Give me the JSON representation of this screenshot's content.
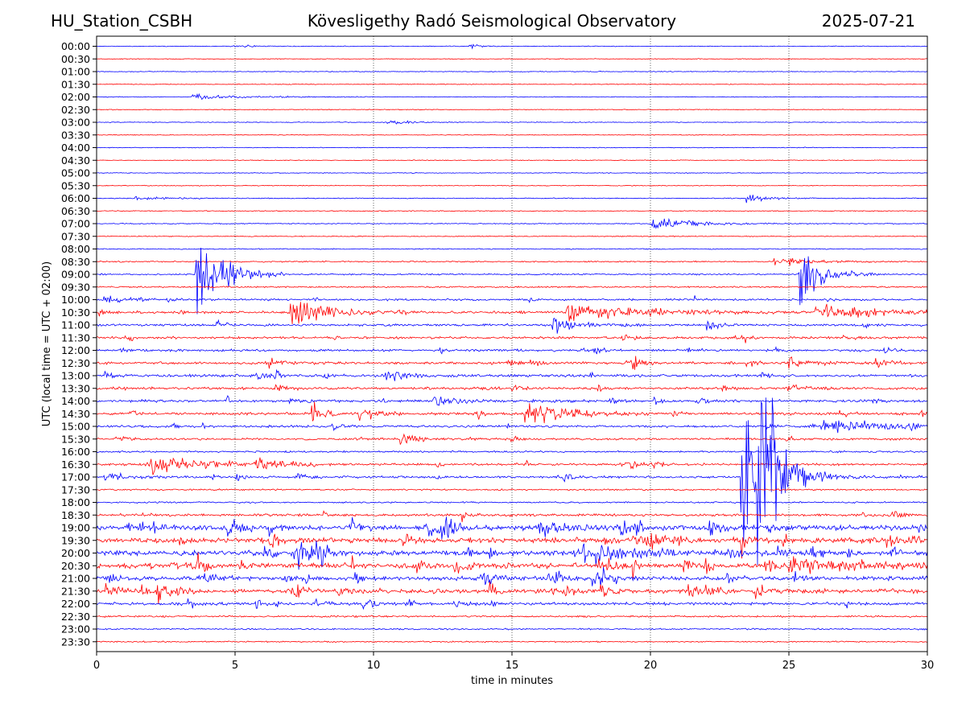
{
  "header": {
    "station": "HU_Station_CSBH",
    "title": "Kövesligethy Radó Seismological Observatory",
    "date": "2025-07-21"
  },
  "chart_data": {
    "type": "line",
    "plot": "helicorder",
    "xlabel": "time in minutes",
    "ylabel": "UTC (local time = UTC + 02:00)",
    "xlim": [
      0,
      30
    ],
    "x_ticks": [
      0,
      5,
      10,
      15,
      20,
      25,
      30
    ],
    "vertical_gridlines_at": [
      5,
      10,
      15,
      20,
      25
    ],
    "grid": "dotted vertical",
    "trace_colors": [
      "#0000ff",
      "#ff0000"
    ],
    "rows": [
      "00:00",
      "00:30",
      "01:00",
      "01:30",
      "02:00",
      "02:30",
      "03:00",
      "03:30",
      "04:00",
      "04:30",
      "05:00",
      "05:30",
      "06:00",
      "06:30",
      "07:00",
      "07:30",
      "08:00",
      "08:30",
      "09:00",
      "09:30",
      "10:00",
      "10:30",
      "11:00",
      "11:30",
      "12:00",
      "12:30",
      "13:00",
      "13:30",
      "14:00",
      "14:30",
      "15:00",
      "15:30",
      "16:00",
      "16:30",
      "17:00",
      "17:30",
      "18:00",
      "18:30",
      "19:00",
      "19:30",
      "20:00",
      "20:30",
      "21:00",
      "21:30",
      "22:00",
      "22:30",
      "23:00",
      "23:30"
    ],
    "noise_level_per_row": [
      0.3,
      0.3,
      0.3,
      0.3,
      0.3,
      0.3,
      0.3,
      0.3,
      0.3,
      0.3,
      0.3,
      0.3,
      0.35,
      0.35,
      0.35,
      0.35,
      0.4,
      0.5,
      0.6,
      0.6,
      0.8,
      1.0,
      0.9,
      0.9,
      0.9,
      1.0,
      1.1,
      1.0,
      1.0,
      1.0,
      0.9,
      0.8,
      0.7,
      0.9,
      0.9,
      0.6,
      0.6,
      1.0,
      2.0,
      2.0,
      2.0,
      2.0,
      1.7,
      1.7,
      1.2,
      0.7,
      0.6,
      0.5
    ],
    "events": [
      {
        "row": "00:00",
        "minute": 5.0,
        "amplitude": 1.5,
        "duration": 0.6
      },
      {
        "row": "00:00",
        "minute": 13.5,
        "amplitude": 2.0,
        "duration": 0.3
      },
      {
        "row": "02:00",
        "minute": 3.5,
        "amplitude": 2.5,
        "duration": 1.5
      },
      {
        "row": "03:00",
        "minute": 10.5,
        "amplitude": 2.0,
        "duration": 0.8
      },
      {
        "row": "06:00",
        "minute": 1.3,
        "amplitude": 1.5,
        "duration": 1.0
      },
      {
        "row": "06:00",
        "minute": 23.5,
        "amplitude": 4.0,
        "duration": 0.6
      },
      {
        "row": "07:00",
        "minute": 20.1,
        "amplitude": 6.0,
        "duration": 1.5
      },
      {
        "row": "08:30",
        "minute": 24.5,
        "amplitude": 4.0,
        "duration": 1.2
      },
      {
        "row": "09:00",
        "minute": 3.6,
        "amplitude": 45.0,
        "duration": 0.8
      },
      {
        "row": "09:00",
        "minute": 25.4,
        "amplitude": 30.0,
        "duration": 0.7
      },
      {
        "row": "10:00",
        "minute": 0.3,
        "amplitude": 4.0,
        "duration": 0.6
      },
      {
        "row": "10:30",
        "minute": 7.0,
        "amplitude": 12.0,
        "duration": 1.3
      },
      {
        "row": "10:30",
        "minute": 17.0,
        "amplitude": 7.0,
        "duration": 2.5
      },
      {
        "row": "10:30",
        "minute": 26.0,
        "amplitude": 6.0,
        "duration": 2.0
      },
      {
        "row": "11:00",
        "minute": 16.5,
        "amplitude": 6.0,
        "duration": 0.6
      },
      {
        "row": "12:30",
        "minute": 25.0,
        "amplitude": 6.0,
        "duration": 0.6
      },
      {
        "row": "13:00",
        "minute": 10.5,
        "amplitude": 5.0,
        "duration": 0.6
      },
      {
        "row": "14:00",
        "minute": 12.2,
        "amplitude": 5.0,
        "duration": 0.7
      },
      {
        "row": "14:30",
        "minute": 7.8,
        "amplitude": 8.0,
        "duration": 0.4
      },
      {
        "row": "14:30",
        "minute": 9.5,
        "amplitude": 8.0,
        "duration": 0.4
      },
      {
        "row": "14:30",
        "minute": 15.5,
        "amplitude": 12.0,
        "duration": 1.2
      },
      {
        "row": "15:00",
        "minute": 26.2,
        "amplitude": 8.0,
        "duration": 1.6
      },
      {
        "row": "15:30",
        "minute": 11.0,
        "amplitude": 4.0,
        "duration": 0.6
      },
      {
        "row": "16:30",
        "minute": 2.0,
        "amplitude": 10.0,
        "duration": 1.5
      },
      {
        "row": "16:30",
        "minute": 5.8,
        "amplitude": 4.0,
        "duration": 1.0
      },
      {
        "row": "17:00",
        "minute": 0.3,
        "amplitude": 4.0,
        "duration": 0.6
      },
      {
        "row": "17:00",
        "minute": 23.3,
        "amplitude": 80.0,
        "duration": 0.8
      },
      {
        "row": "17:00",
        "minute": 23.9,
        "amplitude": 110.0,
        "duration": 0.5
      },
      {
        "row": "17:00",
        "minute": 25.5,
        "amplitude": 5.0,
        "duration": 0.8
      },
      {
        "row": "19:00",
        "minute": 16.0,
        "amplitude": 6.0,
        "duration": 1.0
      },
      {
        "row": "20:00",
        "minute": 18.0,
        "amplitude": 6.0,
        "duration": 2.0
      },
      {
        "row": "20:30",
        "minute": 25.0,
        "amplitude": 6.0,
        "duration": 2.5
      },
      {
        "row": "21:30",
        "minute": 2.2,
        "amplitude": 10.0,
        "duration": 0.5
      }
    ]
  }
}
